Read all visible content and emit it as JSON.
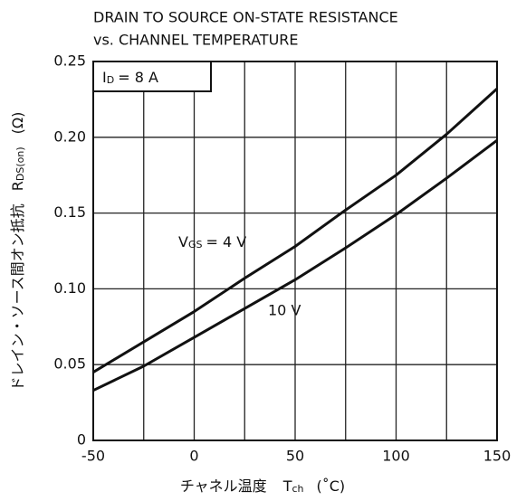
{
  "chart_data": {
    "type": "line",
    "title": [
      "DRAIN TO SOURCE ON-STATE RESISTANCE",
      "vs. CHANNEL TEMPERATURE"
    ],
    "x_label": {
      "text": "チャネル温度",
      "symbol": "T",
      "subscript": "ch",
      "unit": "(˚C)"
    },
    "y_label": {
      "text": "ドレイン・ソース間オン抵抗",
      "symbol": "R",
      "subscript": "DS(on)",
      "unit": "(Ω)"
    },
    "x": [
      -50,
      -25,
      0,
      25,
      50,
      75,
      100,
      125,
      150
    ],
    "series": [
      {
        "name": {
          "symbol": "V",
          "subscript": "GS",
          "text": "= 4 V"
        },
        "color": "#111111",
        "values": [
          0.045,
          0.065,
          0.085,
          0.107,
          0.128,
          0.152,
          0.175,
          0.202,
          0.232
        ]
      },
      {
        "name": {
          "text": "10 V"
        },
        "color": "#111111",
        "values": [
          0.033,
          0.049,
          0.068,
          0.087,
          0.106,
          0.127,
          0.149,
          0.173,
          0.198
        ]
      }
    ],
    "annotation": {
      "symbol": "I",
      "subscript": "D",
      "text": "= 8 A"
    },
    "xlim": [
      -50,
      150
    ],
    "xticks": [
      -50,
      0,
      50,
      100,
      150
    ],
    "x_minor_ticks": [
      -25,
      25,
      75,
      125
    ],
    "ylim": [
      0,
      0.25
    ],
    "yticks": [
      0,
      0.05,
      {
        "value": 0.1,
        "label": "0.10"
      },
      0.15,
      {
        "value": 0.2,
        "label": "0.20"
      },
      0.25
    ],
    "grid": true
  }
}
